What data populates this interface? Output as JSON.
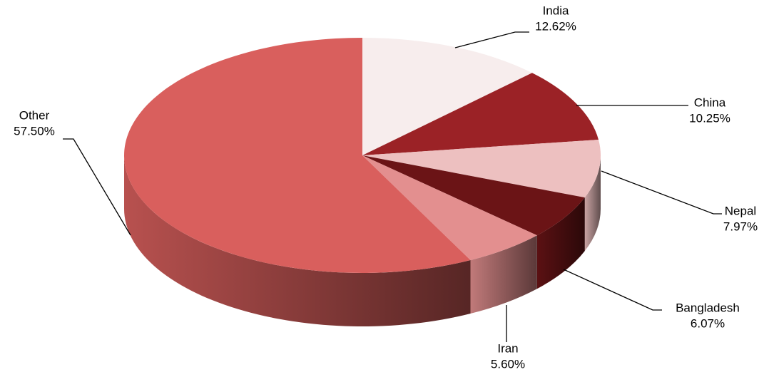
{
  "chart_data": {
    "type": "pie",
    "categories": [
      "India",
      "China",
      "Nepal",
      "Bangladesh",
      "Iran",
      "Other"
    ],
    "values": [
      12.62,
      10.25,
      7.97,
      6.07,
      5.6,
      57.5
    ],
    "value_labels": [
      "12.62%",
      "10.25%",
      "7.97%",
      "6.07%",
      "5.60%",
      "57.50%"
    ],
    "colors": [
      "#f7eded",
      "#9b2226",
      "#edc0c0",
      "#6b1416",
      "#e38f8f",
      "#d95f5d"
    ]
  }
}
